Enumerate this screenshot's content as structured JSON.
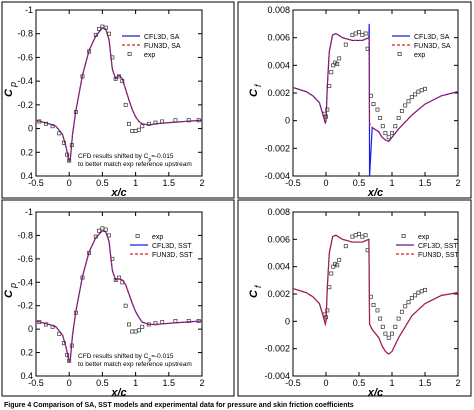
{
  "figure": {
    "caption": "Figure 4 Comparison of SA, SST models and experimental data for pressure and skin friction coefficients"
  },
  "chart_data": [
    {
      "type": "line",
      "id": "sa_cp",
      "xlabel": "x/c",
      "ylabel": "C",
      "ylabel_sub": "p",
      "xlim": [
        -0.5,
        2
      ],
      "ylim": [
        0.4,
        -1
      ],
      "xticks": [
        -0.5,
        0,
        0.5,
        1,
        1.5,
        2
      ],
      "xtick_labels": [
        "-0.5",
        "0",
        "0.5",
        "1",
        "1.5",
        "2"
      ],
      "yticks": [
        -1,
        -0.8,
        -0.6,
        -0.4,
        -0.2,
        0,
        0.2,
        0.4
      ],
      "ytick_labels": [
        "-1",
        "-0.8",
        "-0.6",
        "-0.4",
        "-0.2",
        "0",
        "0.2",
        "0.4"
      ],
      "grid": false,
      "legend_position": "top-right",
      "note": [
        "CFD results shifted by C",
        "p",
        "=-0.015",
        "to better match exp reference upstream"
      ],
      "series": [
        {
          "name": "CFL3D, SA",
          "style": "solid",
          "color": "#1a1ae6",
          "x": [
            -0.5,
            -0.3,
            -0.2,
            -0.1,
            -0.05,
            0,
            0.02,
            0.05,
            0.1,
            0.2,
            0.3,
            0.4,
            0.5,
            0.55,
            0.6,
            0.65,
            0.7,
            0.75,
            0.8,
            0.85,
            0.9,
            0.95,
            1.0,
            1.05,
            1.1,
            1.2,
            1.3,
            1.5,
            1.75,
            2.0
          ],
          "y": [
            -0.07,
            -0.04,
            -0.02,
            0.05,
            0.15,
            0.28,
            0.24,
            0.05,
            -0.15,
            -0.45,
            -0.66,
            -0.78,
            -0.85,
            -0.84,
            -0.75,
            -0.5,
            -0.42,
            -0.45,
            -0.42,
            -0.33,
            -0.24,
            -0.16,
            -0.1,
            -0.06,
            -0.04,
            -0.03,
            -0.04,
            -0.05,
            -0.06,
            -0.07
          ]
        },
        {
          "name": "FUN3D, SA",
          "style": "dashed",
          "color": "#d62020",
          "x": [
            -0.5,
            -0.3,
            -0.2,
            -0.1,
            -0.05,
            0,
            0.02,
            0.05,
            0.1,
            0.2,
            0.3,
            0.4,
            0.5,
            0.55,
            0.6,
            0.65,
            0.7,
            0.75,
            0.8,
            0.85,
            0.9,
            0.95,
            1.0,
            1.05,
            1.1,
            1.2,
            1.3,
            1.5,
            1.75,
            2.0
          ],
          "y": [
            -0.07,
            -0.04,
            -0.02,
            0.05,
            0.15,
            0.28,
            0.24,
            0.05,
            -0.15,
            -0.45,
            -0.66,
            -0.78,
            -0.85,
            -0.84,
            -0.75,
            -0.5,
            -0.42,
            -0.45,
            -0.42,
            -0.33,
            -0.24,
            -0.16,
            -0.1,
            -0.06,
            -0.04,
            -0.03,
            -0.04,
            -0.05,
            -0.06,
            -0.07
          ]
        },
        {
          "name": "exp",
          "style": "markers",
          "color": "#333333",
          "x": [
            -0.45,
            -0.35,
            -0.25,
            -0.15,
            -0.08,
            -0.03,
            0,
            0.04,
            0.1,
            0.2,
            0.3,
            0.4,
            0.45,
            0.5,
            0.55,
            0.6,
            0.65,
            0.7,
            0.75,
            0.8,
            0.85,
            0.9,
            0.95,
            1.0,
            1.05,
            1.1,
            1.2,
            1.3,
            1.4,
            1.6,
            1.8,
            1.95
          ],
          "y": [
            -0.06,
            -0.04,
            -0.02,
            0.04,
            0.12,
            0.22,
            0.27,
            0.14,
            -0.14,
            -0.44,
            -0.65,
            -0.79,
            -0.84,
            -0.86,
            -0.85,
            -0.8,
            -0.6,
            -0.42,
            -0.44,
            -0.4,
            -0.2,
            -0.04,
            0.02,
            0.02,
            0.01,
            -0.02,
            -0.04,
            -0.05,
            -0.06,
            -0.07,
            -0.07,
            -0.07
          ]
        }
      ]
    },
    {
      "type": "line",
      "id": "sa_cf",
      "xlabel": "x/c",
      "ylabel": "C",
      "ylabel_sub": "f",
      "xlim": [
        -0.5,
        2
      ],
      "ylim": [
        -0.004,
        0.008
      ],
      "xticks": [
        -0.5,
        0,
        0.5,
        1,
        1.5,
        2
      ],
      "xtick_labels": [
        "-0.5",
        "0",
        "0.5",
        "1",
        "1.5",
        "2"
      ],
      "yticks": [
        -0.004,
        -0.002,
        0,
        0.002,
        0.004,
        0.006,
        0.008
      ],
      "ytick_labels": [
        "-0.004",
        "-0.002",
        "0",
        "0.002",
        "0.004",
        "0.006",
        "0.008"
      ],
      "grid": false,
      "legend_position": "top-right",
      "series": [
        {
          "name": "CFL3D, SA",
          "style": "solid",
          "color": "#1a1ae6",
          "x": [
            -0.5,
            -0.3,
            -0.2,
            -0.1,
            -0.05,
            -0.01,
            0,
            0.02,
            0.05,
            0.1,
            0.15,
            0.25,
            0.4,
            0.55,
            0.65,
            0.655,
            0.66,
            0.7,
            0.8,
            0.85,
            0.9,
            0.95,
            1.0,
            1.1,
            1.3,
            1.5,
            1.75,
            2.0
          ],
          "y": [
            0.0024,
            0.0021,
            0.0018,
            0.0013,
            0.0005,
            -0.0002,
            0.0,
            0.0025,
            0.005,
            0.0062,
            0.0063,
            0.006,
            0.0058,
            0.0058,
            0.006,
            0.007,
            -0.004,
            -0.0005,
            -0.0008,
            -0.0012,
            -0.0014,
            -0.0015,
            -0.0012,
            -0.0006,
            0.0004,
            0.0012,
            0.0018,
            0.0021
          ]
        },
        {
          "name": "FUN3D, SA",
          "style": "dashed",
          "color": "#d62020",
          "x": [
            -0.5,
            -0.3,
            -0.2,
            -0.1,
            -0.05,
            -0.01,
            0,
            0.02,
            0.05,
            0.1,
            0.15,
            0.25,
            0.4,
            0.55,
            0.65,
            0.66,
            0.7,
            0.8,
            0.85,
            0.9,
            0.95,
            1.0,
            1.1,
            1.3,
            1.5,
            1.75,
            2.0
          ],
          "y": [
            0.0024,
            0.0021,
            0.0018,
            0.0013,
            0.0005,
            -0.0002,
            0.0,
            0.0025,
            0.005,
            0.0062,
            0.0063,
            0.006,
            0.0058,
            0.0058,
            0.006,
            -0.0002,
            -0.0005,
            -0.0008,
            -0.0012,
            -0.0014,
            -0.0015,
            -0.0012,
            -0.0006,
            0.0004,
            0.0012,
            0.0018,
            0.0021
          ]
        },
        {
          "name": "exp",
          "style": "markers",
          "color": "#333333",
          "x": [
            -0.02,
            0.0,
            0.02,
            0.05,
            0.08,
            0.11,
            0.14,
            0.17,
            0.2,
            0.3,
            0.4,
            0.45,
            0.5,
            0.55,
            0.6,
            0.63,
            0.68,
            0.72,
            0.78,
            0.82,
            0.86,
            0.9,
            0.95,
            1.0,
            1.05,
            1.1,
            1.15,
            1.2,
            1.25,
            1.3,
            1.35,
            1.4,
            1.45,
            1.5
          ],
          "y": [
            0.0005,
            0.0003,
            0.0008,
            0.0025,
            0.0035,
            0.004,
            0.0042,
            0.0041,
            0.0045,
            0.0055,
            0.0062,
            0.0063,
            0.0064,
            0.0062,
            0.0063,
            0.0052,
            0.0018,
            0.0012,
            0.0008,
            0.0002,
            -0.0004,
            -0.0009,
            -0.0012,
            -0.0009,
            -0.0004,
            0.0002,
            0.0007,
            0.0011,
            0.0014,
            0.0017,
            0.0019,
            0.0021,
            0.0022,
            0.0023
          ]
        }
      ]
    },
    {
      "type": "line",
      "id": "sst_cp",
      "xlabel": "x/c",
      "ylabel": "C",
      "ylabel_sub": "p",
      "xlim": [
        -0.5,
        2
      ],
      "ylim": [
        0.4,
        -1
      ],
      "xticks": [
        -0.5,
        0,
        0.5,
        1,
        1.5,
        2
      ],
      "xtick_labels": [
        "-0.5",
        "0",
        "0.5",
        "1",
        "1.5",
        "2"
      ],
      "yticks": [
        -1,
        -0.8,
        -0.6,
        -0.4,
        -0.2,
        0,
        0.2,
        0.4
      ],
      "ytick_labels": [
        "-1",
        "-0.8",
        "-0.6",
        "-0.4",
        "-0.2",
        "0",
        "0.2",
        "0.4"
      ],
      "grid": false,
      "legend_position": "top-right",
      "note": [
        "CFD results shifted by C",
        "p",
        "=-0.015",
        "to better match exp reference upstream"
      ],
      "series": [
        {
          "name": "exp",
          "style": "markers",
          "color": "#333333",
          "x": [
            -0.45,
            -0.35,
            -0.25,
            -0.15,
            -0.08,
            -0.03,
            0,
            0.04,
            0.1,
            0.2,
            0.3,
            0.4,
            0.45,
            0.5,
            0.55,
            0.6,
            0.65,
            0.7,
            0.75,
            0.8,
            0.85,
            0.9,
            0.95,
            1.0,
            1.05,
            1.1,
            1.2,
            1.3,
            1.4,
            1.6,
            1.8,
            1.95
          ],
          "y": [
            -0.06,
            -0.04,
            -0.02,
            0.04,
            0.12,
            0.22,
            0.27,
            0.14,
            -0.14,
            -0.44,
            -0.65,
            -0.79,
            -0.84,
            -0.86,
            -0.85,
            -0.8,
            -0.6,
            -0.42,
            -0.44,
            -0.4,
            -0.2,
            -0.04,
            0.02,
            0.02,
            0.01,
            -0.02,
            -0.04,
            -0.05,
            -0.06,
            -0.07,
            -0.07,
            -0.07
          ]
        },
        {
          "name": "CFL3D, SST",
          "style": "solid",
          "color": "#1a1ae6",
          "x": [
            -0.5,
            -0.3,
            -0.2,
            -0.1,
            -0.05,
            0,
            0.02,
            0.05,
            0.1,
            0.2,
            0.3,
            0.4,
            0.5,
            0.55,
            0.6,
            0.65,
            0.7,
            0.75,
            0.8,
            0.85,
            0.9,
            0.95,
            1.0,
            1.05,
            1.1,
            1.2,
            1.3,
            1.5,
            1.75,
            2.0
          ],
          "y": [
            -0.07,
            -0.04,
            -0.02,
            0.05,
            0.15,
            0.28,
            0.24,
            0.05,
            -0.15,
            -0.45,
            -0.66,
            -0.78,
            -0.84,
            -0.83,
            -0.75,
            -0.5,
            -0.42,
            -0.43,
            -0.42,
            -0.38,
            -0.3,
            -0.22,
            -0.15,
            -0.1,
            -0.06,
            -0.04,
            -0.04,
            -0.05,
            -0.06,
            -0.07
          ]
        },
        {
          "name": "FUN3D, SST",
          "style": "dashed",
          "color": "#d62020",
          "x": [
            -0.5,
            -0.3,
            -0.2,
            -0.1,
            -0.05,
            0,
            0.02,
            0.05,
            0.1,
            0.2,
            0.3,
            0.4,
            0.5,
            0.55,
            0.6,
            0.65,
            0.7,
            0.75,
            0.8,
            0.85,
            0.9,
            0.95,
            1.0,
            1.05,
            1.1,
            1.2,
            1.3,
            1.5,
            1.75,
            2.0
          ],
          "y": [
            -0.07,
            -0.04,
            -0.02,
            0.05,
            0.15,
            0.28,
            0.24,
            0.05,
            -0.15,
            -0.45,
            -0.66,
            -0.78,
            -0.84,
            -0.83,
            -0.75,
            -0.5,
            -0.42,
            -0.43,
            -0.42,
            -0.38,
            -0.3,
            -0.22,
            -0.15,
            -0.1,
            -0.06,
            -0.04,
            -0.04,
            -0.05,
            -0.06,
            -0.07
          ]
        }
      ]
    },
    {
      "type": "line",
      "id": "sst_cf",
      "xlabel": "x/c",
      "ylabel": "C",
      "ylabel_sub": "f",
      "xlim": [
        -0.5,
        2
      ],
      "ylim": [
        -0.004,
        0.008
      ],
      "xticks": [
        -0.5,
        0,
        0.5,
        1,
        1.5,
        2
      ],
      "xtick_labels": [
        "-0.5",
        "0",
        "0.5",
        "1",
        "1.5",
        "2"
      ],
      "yticks": [
        -0.004,
        -0.002,
        0,
        0.002,
        0.004,
        0.006,
        0.008
      ],
      "ytick_labels": [
        "-0.004",
        "-0.002",
        "0",
        "0.002",
        "0.004",
        "0.006",
        "0.008"
      ],
      "grid": false,
      "legend_position": "top-right",
      "series": [
        {
          "name": "exp",
          "style": "markers",
          "color": "#333333",
          "x": [
            -0.02,
            0.0,
            0.02,
            0.05,
            0.08,
            0.11,
            0.14,
            0.17,
            0.2,
            0.3,
            0.4,
            0.45,
            0.5,
            0.55,
            0.6,
            0.63,
            0.68,
            0.72,
            0.78,
            0.82,
            0.86,
            0.9,
            0.95,
            1.0,
            1.05,
            1.1,
            1.15,
            1.2,
            1.25,
            1.3,
            1.35,
            1.4,
            1.45,
            1.5
          ],
          "y": [
            0.0005,
            0.0003,
            0.0008,
            0.0025,
            0.0035,
            0.004,
            0.0042,
            0.0041,
            0.0045,
            0.0055,
            0.0062,
            0.0063,
            0.0064,
            0.0062,
            0.0063,
            0.0052,
            0.0018,
            0.0012,
            0.0008,
            0.0002,
            -0.0004,
            -0.0009,
            -0.0012,
            -0.0009,
            -0.0004,
            0.0002,
            0.0007,
            0.0011,
            0.0014,
            0.0017,
            0.0019,
            0.0021,
            0.0022,
            0.0023
          ]
        },
        {
          "name": "CFL3D, SST",
          "style": "solid",
          "color": "#5a1a9a",
          "x": [
            -0.5,
            -0.3,
            -0.2,
            -0.1,
            -0.05,
            -0.01,
            0,
            0.02,
            0.05,
            0.1,
            0.15,
            0.25,
            0.4,
            0.55,
            0.65,
            0.66,
            0.7,
            0.8,
            0.85,
            0.9,
            0.95,
            1.0,
            1.1,
            1.3,
            1.5,
            1.75,
            2.0
          ],
          "y": [
            0.0024,
            0.0021,
            0.0018,
            0.0013,
            0.0005,
            -0.0002,
            0.0,
            0.0025,
            0.005,
            0.0062,
            0.0063,
            0.006,
            0.0058,
            0.0058,
            0.006,
            -0.0002,
            -0.0006,
            -0.0012,
            -0.0018,
            -0.0022,
            -0.0024,
            -0.0022,
            -0.0012,
            0.0004,
            0.0013,
            0.0019,
            0.0021
          ]
        },
        {
          "name": "FUN3D, SST",
          "style": "dashed",
          "color": "#d62020",
          "x": [
            -0.5,
            -0.3,
            -0.2,
            -0.1,
            -0.05,
            -0.01,
            0,
            0.02,
            0.05,
            0.1,
            0.15,
            0.25,
            0.4,
            0.55,
            0.65,
            0.66,
            0.7,
            0.8,
            0.85,
            0.9,
            0.95,
            1.0,
            1.1,
            1.3,
            1.5,
            1.75,
            2.0
          ],
          "y": [
            0.0024,
            0.0021,
            0.0018,
            0.0013,
            0.0005,
            -0.0002,
            0.0,
            0.0025,
            0.005,
            0.0062,
            0.0063,
            0.006,
            0.0058,
            0.0058,
            0.006,
            -0.0002,
            -0.0006,
            -0.0012,
            -0.0018,
            -0.0022,
            -0.0024,
            -0.0022,
            -0.0012,
            0.0004,
            0.0013,
            0.0019,
            0.0021
          ]
        }
      ]
    }
  ]
}
